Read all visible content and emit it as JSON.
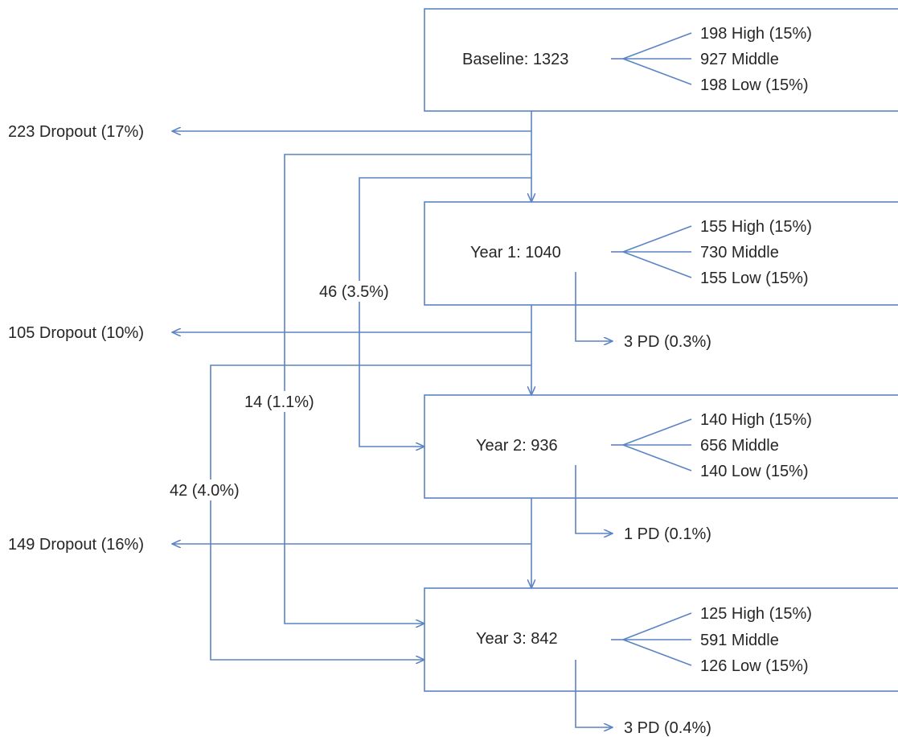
{
  "colors": {
    "line": "#5b84c4",
    "text": "#262626"
  },
  "stages": [
    {
      "label": "Baseline: 1323",
      "branches": [
        "198 High (15%)",
        "927 Middle",
        "198 Low (15%)"
      ]
    },
    {
      "label": "Year 1: 1040",
      "branches": [
        "155 High (15%)",
        "730 Middle",
        "155 Low (15%)"
      ]
    },
    {
      "label": "Year 2: 936",
      "branches": [
        "140 High (15%)",
        "656 Middle",
        "140 Low (15%)"
      ]
    },
    {
      "label": "Year 3: 842",
      "branches": [
        "125 High (15%)",
        "591 Middle",
        "126 Low (15%)"
      ]
    }
  ],
  "dropouts": [
    "223 Dropout (17%)",
    "105 Dropout (10%)",
    "149 Dropout (16%)"
  ],
  "pd": [
    "3 PD (0.3%)",
    "1 PD (0.1%)",
    "3 PD (0.4%)"
  ],
  "skips": [
    "46 (3.5%)",
    "14 (1.1%)",
    "42 (4.0%)"
  ]
}
